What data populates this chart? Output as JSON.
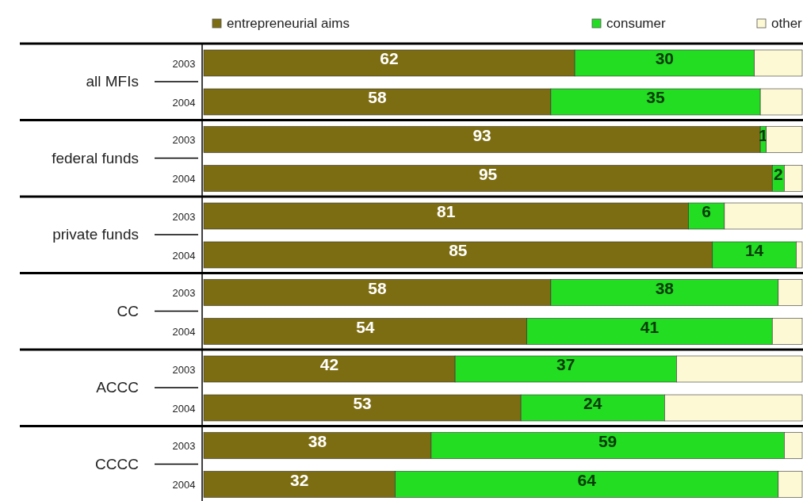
{
  "chart_data": {
    "type": "bar",
    "orientation": "horizontal",
    "stacked": true,
    "categories": [
      "2003",
      "2004",
      "2003",
      "2004",
      "2003",
      "2004",
      "2003",
      "2004",
      "2003",
      "2004",
      "2003",
      "2004"
    ],
    "annotations": [
      "all MFIs",
      "federal funds",
      "private funds",
      "CC",
      "ACCC",
      "CCCC"
    ],
    "xlim": [
      0,
      100
    ],
    "tick_labels": "y",
    "legend": "top right",
    "series": [
      {
        "name": "entrepreneurial aims",
        "color": "#7d6d12",
        "values": [
          62,
          58,
          93,
          95,
          81,
          85,
          58,
          54,
          42,
          53,
          38,
          32
        ],
        "value_labels": [
          "62",
          "58",
          "93",
          "95",
          "81",
          "85",
          "58",
          "54",
          "42",
          "53",
          "38",
          "32"
        ]
      },
      {
        "name": "consumer",
        "color": "#22dd22",
        "values": [
          30,
          35,
          1,
          2,
          6,
          14,
          38,
          41,
          37,
          24,
          59,
          64
        ],
        "value_labels": [
          "30",
          "35",
          "1",
          "2",
          "6",
          "14",
          "38",
          "41",
          "37",
          "24",
          "59",
          "64"
        ]
      },
      {
        "name": "other",
        "color": "#fdf9d4",
        "values": [
          8,
          7,
          6,
          3,
          13,
          1,
          4,
          5,
          21,
          23,
          3,
          4
        ]
      }
    ]
  }
}
